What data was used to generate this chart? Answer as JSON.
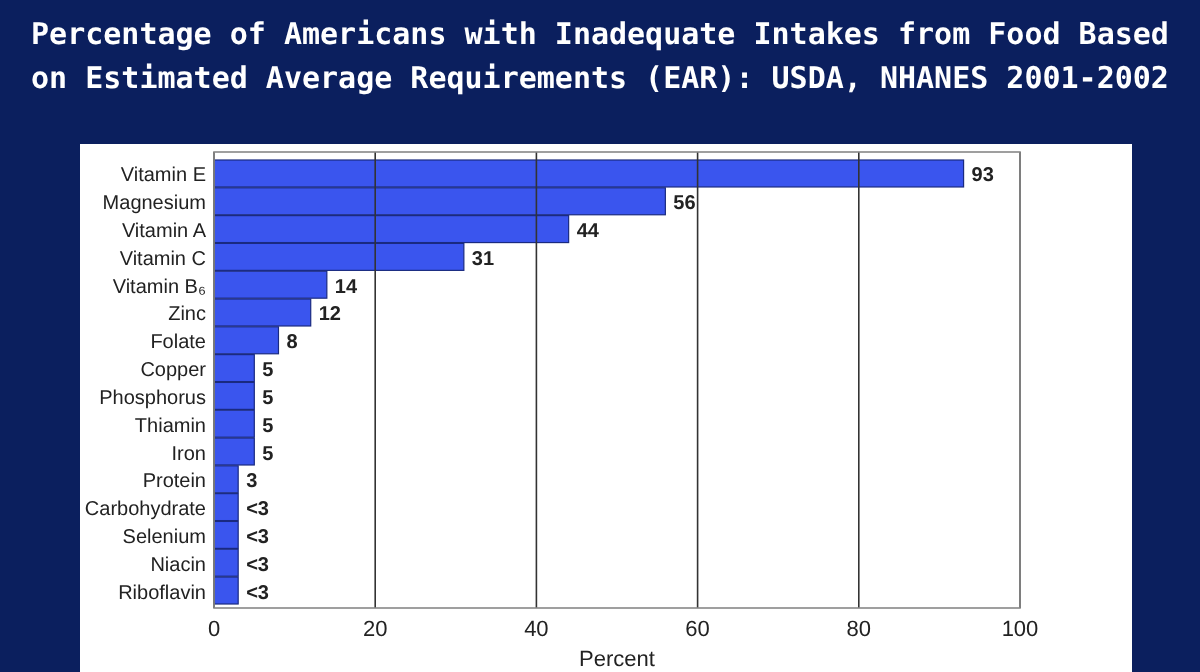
{
  "chart_data": {
    "type": "bar",
    "orientation": "horizontal",
    "title": "Percentage of Americans with Inadequate Intakes from Food Based on Estimated Average Requirements (EAR): USDA, NHANES 2001-2002",
    "xlabel": "Percent",
    "categories": [
      "Vitamin E",
      "Magnesium",
      "Vitamin A",
      "Vitamin C",
      "Vitamin B₆",
      "Zinc",
      "Folate",
      "Copper",
      "Phosphorus",
      "Thiamin",
      "Iron",
      "Protein",
      "Carbohydrate",
      "Selenium",
      "Niacin",
      "Riboflavin"
    ],
    "values": [
      93,
      56,
      44,
      31,
      14,
      12,
      8,
      5,
      5,
      5,
      5,
      3,
      3,
      3,
      3,
      3
    ],
    "value_labels": [
      "93",
      "56",
      "44",
      "31",
      "14",
      "12",
      "8",
      "5",
      "5",
      "5",
      "5",
      "3",
      "<3",
      "<3",
      "<3",
      "<3"
    ],
    "color": "#3a55ee",
    "xlim": [
      0,
      100
    ],
    "xticks": [
      0,
      20,
      40,
      60,
      80,
      100
    ],
    "grid": "x"
  }
}
